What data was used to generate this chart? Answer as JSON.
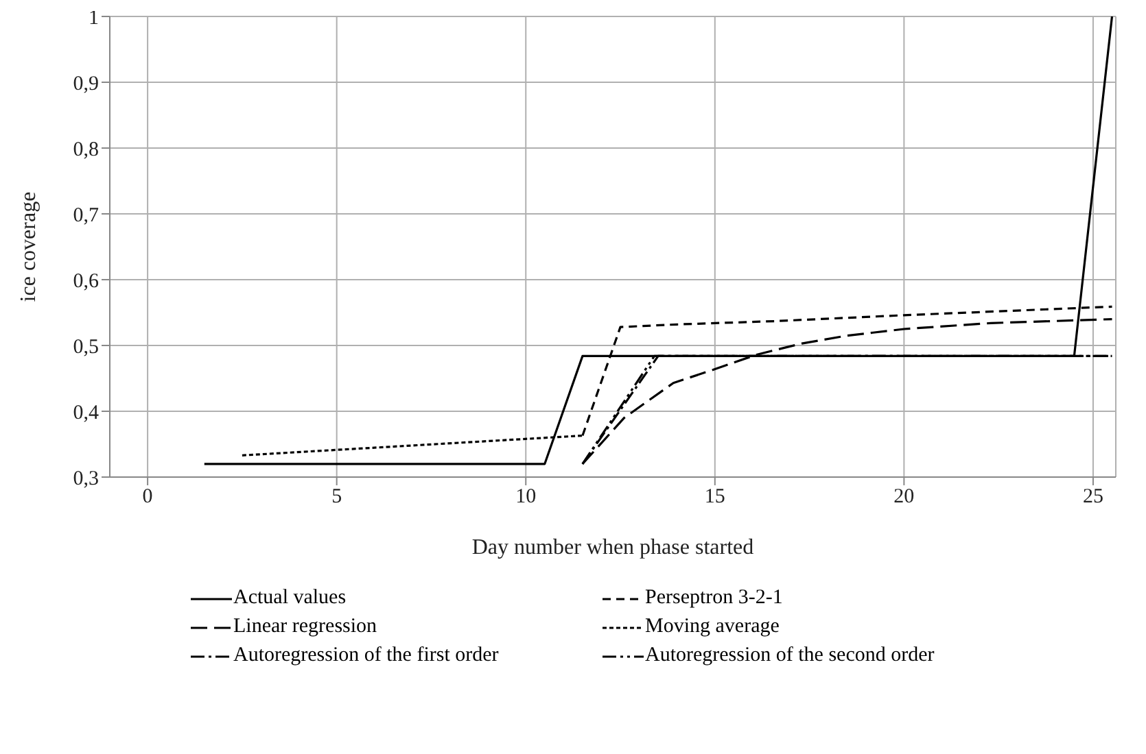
{
  "chart_data": {
    "type": "line",
    "xlabel": "Day number when phase started",
    "ylabel": "ice coverage",
    "xlim": [
      -1,
      25.6
    ],
    "xticks": [
      0,
      5,
      10,
      15,
      20,
      25
    ],
    "ylim": [
      0.3,
      1
    ],
    "yticks": [
      {
        "value": 0.3,
        "label": "0,3"
      },
      {
        "value": 0.4,
        "label": "0,4"
      },
      {
        "value": 0.5,
        "label": "0,5"
      },
      {
        "value": 0.6,
        "label": "0,6"
      },
      {
        "value": 0.7,
        "label": "0,7"
      },
      {
        "value": 0.8,
        "label": "0,8"
      },
      {
        "value": 0.9,
        "label": "0,9"
      },
      {
        "value": 1,
        "label": "1"
      }
    ],
    "grid": true,
    "legend": "bottom",
    "marker": "none",
    "series": [
      {
        "name": "Actual values",
        "color": "#000000",
        "line_style": "solid",
        "x": [
          1.5,
          10.5,
          11.5,
          24.5,
          25.5
        ],
        "values": [
          0.32,
          0.32,
          0.484,
          0.484,
          1
        ]
      },
      {
        "name": "Perseptron 3-2-1",
        "color": "#000000",
        "line_style": "dashed",
        "x": [
          11.5,
          12.5,
          14,
          16.6,
          20,
          25.5
        ],
        "values": [
          0.363,
          0.528,
          0.532,
          0.537,
          0.546,
          0.559
        ]
      },
      {
        "name": "Linear regression",
        "color": "#000000",
        "line_style": "longdashed",
        "x": [
          11.5,
          12.6,
          13.9,
          15,
          16.1,
          17.3,
          18.5,
          20,
          22.3,
          25.5
        ],
        "values": [
          0.32,
          0.39,
          0.443,
          0.464,
          0.486,
          0.503,
          0.515,
          0.525,
          0.534,
          0.54
        ]
      },
      {
        "name": "Moving average",
        "color": "#000000",
        "line_style": "dotted",
        "x": [
          2.5,
          11.5
        ],
        "values": [
          0.333,
          0.363
        ]
      },
      {
        "name": "Autoregression of the first order",
        "color": "#000000",
        "line_style": "dashdot",
        "x": [
          11.5,
          13.5,
          25.5
        ],
        "values": [
          0.32,
          0.484,
          0.484
        ]
      },
      {
        "name": "Autoregression of the second order",
        "color": "#000000",
        "line_style": "dashdotdot",
        "x": [
          11.5,
          13.4,
          25.5
        ],
        "values": [
          0.32,
          0.484,
          0.484
        ]
      }
    ]
  }
}
